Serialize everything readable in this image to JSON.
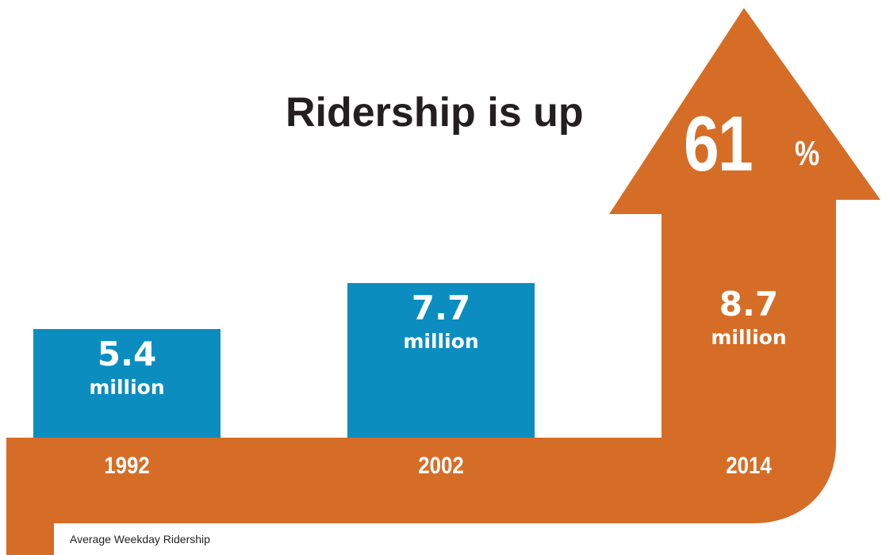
{
  "headline": "Ridership is up",
  "percent": {
    "number": "61",
    "sign": "%"
  },
  "caption": "Average Weekday Ridership",
  "colors": {
    "bar": "#0b8dc0",
    "arrow": "#d66d27",
    "text": "#231f20",
    "label": "#ffffff"
  },
  "chart_data": {
    "type": "bar",
    "categories": [
      "1992",
      "2002",
      "2014"
    ],
    "values": [
      5.4,
      7.7,
      8.7
    ],
    "value_labels": [
      "5.4",
      "7.7",
      "8.7"
    ],
    "unit_label": "million",
    "title": "Ridership is up",
    "subtitle": "Average Weekday Ridership",
    "highlight": {
      "category": "2014",
      "growth_label": "61%"
    },
    "xlabel": "",
    "ylabel": "",
    "grid": false
  }
}
